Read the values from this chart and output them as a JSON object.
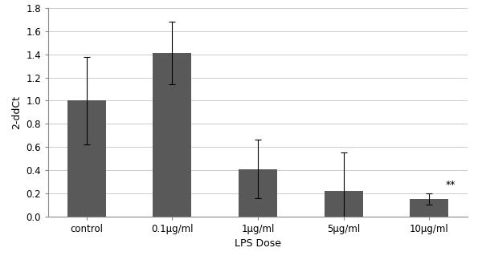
{
  "categories": [
    "control",
    "0.1μg/ml",
    "1μg/ml",
    "5μg/ml",
    "10μg/ml"
  ],
  "values": [
    1.0,
    1.41,
    0.41,
    0.22,
    0.15
  ],
  "errors": [
    0.38,
    0.27,
    0.25,
    0.33,
    0.05
  ],
  "bar_color": "#595959",
  "xlabel": "LPS Dose",
  "ylabel": "2-ddCt",
  "ylim": [
    0,
    1.8
  ],
  "yticks": [
    0,
    0.2,
    0.4,
    0.6,
    0.8,
    1.0,
    1.2,
    1.4,
    1.6,
    1.8
  ],
  "annotation_index": 4,
  "annotation_text": "**",
  "background_color": "#ffffff",
  "grid_color": "#cccccc",
  "bar_width": 0.45
}
